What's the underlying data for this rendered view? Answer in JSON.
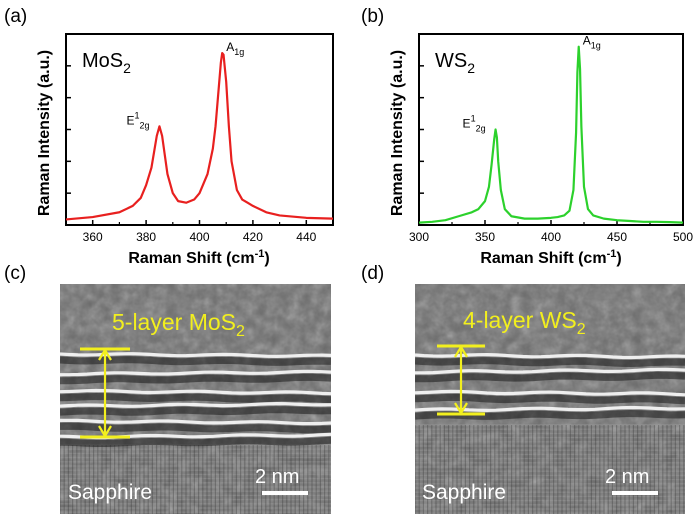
{
  "panel_letters": {
    "a": "(a)",
    "b": "(b)",
    "c": "(c)",
    "d": "(d)"
  },
  "chart_data": [
    {
      "type": "line",
      "panel": "(a)",
      "material_base": "MoS",
      "material_sub": "2",
      "xlabel_main": "Raman Shift (cm",
      "xlabel_sup": "-1",
      "xlabel_end": ")",
      "ylabel": "Raman Intensity (a.u.)",
      "xlim": [
        350,
        450
      ],
      "ylim": [
        0,
        1.2
      ],
      "xticks": [
        360,
        380,
        400,
        420,
        440
      ],
      "xtick_labels": [
        "360",
        "380",
        "400",
        "420",
        "440"
      ],
      "line_color": "#e8201f",
      "series": [
        {
          "x": [
            350,
            360,
            370,
            375,
            378,
            380,
            382,
            383,
            384,
            385,
            386,
            387,
            388,
            390,
            392,
            395,
            398,
            400,
            403,
            405,
            406,
            407,
            408,
            408.5,
            409,
            410,
            411,
            412,
            414,
            416,
            418,
            420,
            425,
            430,
            440,
            450
          ],
          "y": [
            0.035,
            0.05,
            0.08,
            0.12,
            0.17,
            0.25,
            0.36,
            0.46,
            0.56,
            0.62,
            0.56,
            0.44,
            0.32,
            0.2,
            0.15,
            0.14,
            0.16,
            0.2,
            0.32,
            0.48,
            0.62,
            0.82,
            1.02,
            1.08,
            1.07,
            0.9,
            0.62,
            0.4,
            0.22,
            0.16,
            0.14,
            0.12,
            0.08,
            0.06,
            0.045,
            0.04
          ]
        }
      ],
      "annotations": [
        {
          "base": "E",
          "sup": "1",
          "sub": "2g",
          "x": 385,
          "y": 0.62
        },
        {
          "base": "A",
          "sub": "1g",
          "x": 408.5,
          "y": 1.08
        }
      ]
    },
    {
      "type": "line",
      "panel": "(b)",
      "material_base": "WS",
      "material_sub": "2",
      "xlabel_main": "Raman Shift (cm",
      "xlabel_sup": "-1",
      "xlabel_end": ")",
      "ylabel": "Raman Intensity (a.u.)",
      "xlim": [
        300,
        500
      ],
      "ylim": [
        0,
        1.2
      ],
      "xticks": [
        300,
        350,
        400,
        450,
        500
      ],
      "xtick_labels": [
        "300",
        "350",
        "400",
        "450",
        "500"
      ],
      "line_color": "#2cd12c",
      "series": [
        {
          "x": [
            300,
            310,
            320,
            330,
            340,
            345,
            350,
            353,
            355,
            357,
            358,
            359,
            360,
            362,
            365,
            370,
            380,
            390,
            400,
            405,
            410,
            414,
            417,
            419,
            420,
            421,
            422,
            423,
            425,
            428,
            432,
            440,
            450,
            460,
            470,
            480,
            490,
            500
          ],
          "y": [
            0.015,
            0.02,
            0.03,
            0.055,
            0.08,
            0.1,
            0.15,
            0.24,
            0.38,
            0.54,
            0.6,
            0.55,
            0.4,
            0.22,
            0.1,
            0.055,
            0.04,
            0.04,
            0.045,
            0.05,
            0.06,
            0.09,
            0.22,
            0.58,
            0.96,
            1.12,
            0.98,
            0.62,
            0.24,
            0.1,
            0.06,
            0.04,
            0.03,
            0.025,
            0.02,
            0.02,
            0.018,
            0.015
          ]
        }
      ],
      "annotations": [
        {
          "base": "E",
          "sup": "1",
          "sub": "2g",
          "x": 358,
          "y": 0.6
        },
        {
          "base": "A",
          "sub": "1g",
          "x": 421,
          "y": 1.12
        }
      ]
    }
  ],
  "tem": {
    "left": {
      "label_main": "5-layer MoS",
      "label_sub": "2",
      "substrate": "Sapphire",
      "scale": "2 nm"
    },
    "right": {
      "label_main": "4-layer WS",
      "label_sub": "2",
      "substrate": "Sapphire",
      "scale": "2 nm"
    }
  },
  "colors": {
    "mos2_line": "#e8201f",
    "ws2_line": "#2cd12c",
    "tem_label": "#f2ef1e",
    "tem_text": "#ffffff"
  }
}
